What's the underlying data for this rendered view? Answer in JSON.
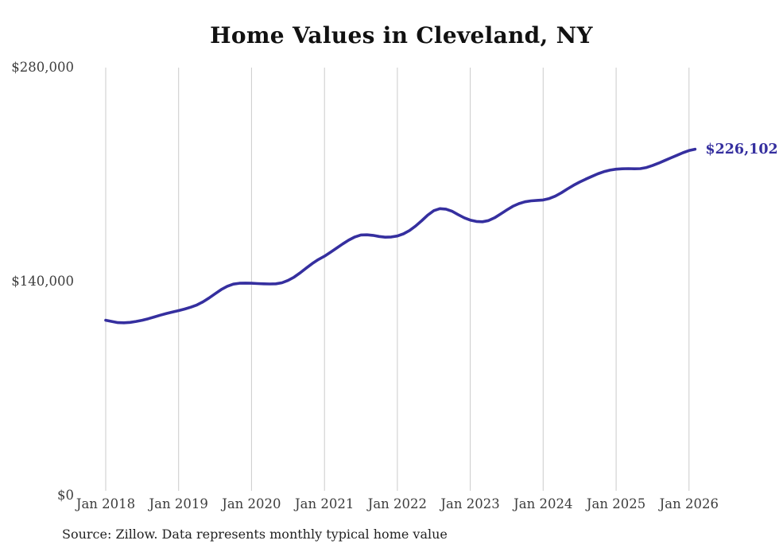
{
  "chart": {
    "title": "Home Values in Cleveland, NY",
    "source": "Source: Zillow. Data represents monthly typical home value",
    "latest_value_label": "$226,102"
  },
  "chart_data": {
    "type": "line",
    "title": "Home Values in Cleveland, NY",
    "xlabel": "",
    "ylabel": "",
    "ylim": [
      0,
      280000
    ],
    "grid": "vertical-only",
    "legend": "none",
    "line_color": "#352f9f",
    "grid_color": "#cbcbcb",
    "axis_text_color": "#3d3d3d",
    "y_ticks": [
      {
        "label": "$0",
        "value": 0
      },
      {
        "label": "$140,000",
        "value": 140000
      },
      {
        "label": "$280,000",
        "value": 280000
      }
    ],
    "x_ticks": [
      {
        "label": "Jan 2018",
        "month": 0
      },
      {
        "label": "Jan 2019",
        "month": 12
      },
      {
        "label": "Jan 2020",
        "month": 24
      },
      {
        "label": "Jan 2021",
        "month": 36
      },
      {
        "label": "Jan 2022",
        "month": 48
      },
      {
        "label": "Jan 2023",
        "month": 60
      },
      {
        "label": "Jan 2024",
        "month": 72
      },
      {
        "label": "Jan 2025",
        "month": 84
      },
      {
        "label": "Jan 2026",
        "month": 96
      }
    ],
    "x": [
      "2018-01",
      "2018-02",
      "2018-03",
      "2018-04",
      "2018-05",
      "2018-06",
      "2018-07",
      "2018-08",
      "2018-09",
      "2018-10",
      "2018-11",
      "2018-12",
      "2019-01",
      "2019-02",
      "2019-03",
      "2019-04",
      "2019-05",
      "2019-06",
      "2019-07",
      "2019-08",
      "2019-09",
      "2019-10",
      "2019-11",
      "2019-12",
      "2020-01",
      "2020-02",
      "2020-03",
      "2020-04",
      "2020-05",
      "2020-06",
      "2020-07",
      "2020-08",
      "2020-09",
      "2020-10",
      "2020-11",
      "2020-12",
      "2021-01",
      "2021-02",
      "2021-03",
      "2021-04",
      "2021-05",
      "2021-06",
      "2021-07",
      "2021-08",
      "2021-09",
      "2021-10",
      "2021-11",
      "2021-12",
      "2022-01",
      "2022-02",
      "2022-03",
      "2022-04",
      "2022-05",
      "2022-06",
      "2022-07",
      "2022-08",
      "2022-09",
      "2022-10",
      "2022-11",
      "2022-12",
      "2023-01",
      "2023-02",
      "2023-03",
      "2023-04",
      "2023-05",
      "2023-06",
      "2023-07",
      "2023-08",
      "2023-09",
      "2023-10",
      "2023-11",
      "2023-12",
      "2024-01",
      "2024-02",
      "2024-03",
      "2024-04",
      "2024-05",
      "2024-06",
      "2024-07",
      "2024-08",
      "2024-09",
      "2024-10",
      "2024-11",
      "2024-12",
      "2025-01",
      "2025-02",
      "2025-03",
      "2025-04",
      "2025-05",
      "2025-06",
      "2025-07",
      "2025-08",
      "2025-09",
      "2025-10",
      "2025-11",
      "2025-12",
      "2026-01",
      "2026-02"
    ],
    "series": [
      {
        "name": "Typical home value",
        "values": [
          114200,
          113400,
          112600,
          112500,
          112800,
          113400,
          114200,
          115200,
          116300,
          117500,
          118600,
          119600,
          120500,
          121500,
          122700,
          124200,
          126200,
          128700,
          131500,
          134200,
          136400,
          137800,
          138400,
          138500,
          138400,
          138200,
          138000,
          137900,
          138000,
          138700,
          140200,
          142400,
          145200,
          148300,
          151300,
          153900,
          156100,
          158700,
          161400,
          164100,
          166600,
          168700,
          170000,
          170100,
          169700,
          169000,
          168500,
          168700,
          169300,
          170700,
          172900,
          175800,
          179300,
          183000,
          185900,
          187200,
          186900,
          185500,
          183300,
          181200,
          179700,
          178800,
          178600,
          179400,
          181200,
          183700,
          186300,
          188700,
          190500,
          191700,
          192300,
          192600,
          192900,
          193800,
          195400,
          197600,
          200100,
          202500,
          204600,
          206500,
          208300,
          210000,
          211400,
          212400,
          213000,
          213300,
          213400,
          213300,
          213400,
          214100,
          215400,
          217000,
          218700,
          220400,
          222100,
          223800,
          225200,
          226102
        ]
      }
    ],
    "annotation": {
      "label": "$226,102",
      "value": 226102
    }
  }
}
